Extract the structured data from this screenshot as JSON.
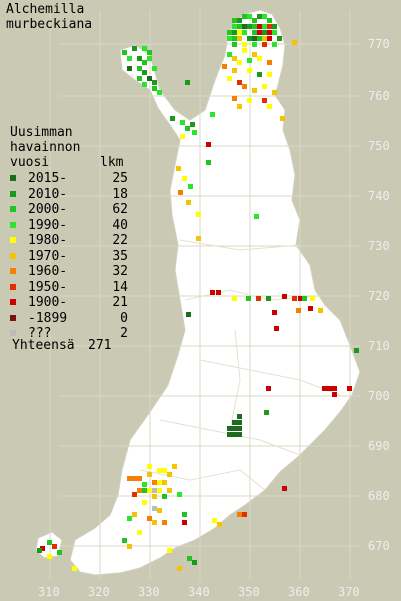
{
  "title": [
    "Alchemilla",
    "murbeckiana"
  ],
  "legend": {
    "heading": [
      "Uusimman",
      "havainnon"
    ],
    "col_year": "vuosi",
    "col_count": "lkm",
    "rows": [
      {
        "label": "2015-",
        "count": "25",
        "color": "#1e6b1e"
      },
      {
        "label": "2010-",
        "count": "18",
        "color": "#1a9a1a"
      },
      {
        "label": "2000-",
        "count": "62",
        "color": "#21c421"
      },
      {
        "label": "1990-",
        "count": "40",
        "color": "#2ae62a"
      },
      {
        "label": "1980-",
        "count": "22",
        "color": "#ffff00"
      },
      {
        "label": "1970-",
        "count": "35",
        "color": "#f5c400"
      },
      {
        "label": "1960-",
        "count": "32",
        "color": "#f58000"
      },
      {
        "label": "1950-",
        "count": "14",
        "color": "#e03000"
      },
      {
        "label": "1900-",
        "count": "21",
        "color": "#cc0000"
      },
      {
        "label": "-1899",
        "count": "0",
        "color": "#7a1010"
      },
      {
        "label": "???",
        "count": "2",
        "color": "#bcbcbc"
      }
    ],
    "total_label": "Yhteensä",
    "total_count": "271"
  },
  "y_ticks": [
    "770",
    "760",
    "750",
    "740",
    "730",
    "720",
    "710",
    "700",
    "690",
    "680",
    "670"
  ],
  "x_ticks": [
    "310",
    "320",
    "330",
    "340",
    "350",
    "360",
    "370"
  ]
}
